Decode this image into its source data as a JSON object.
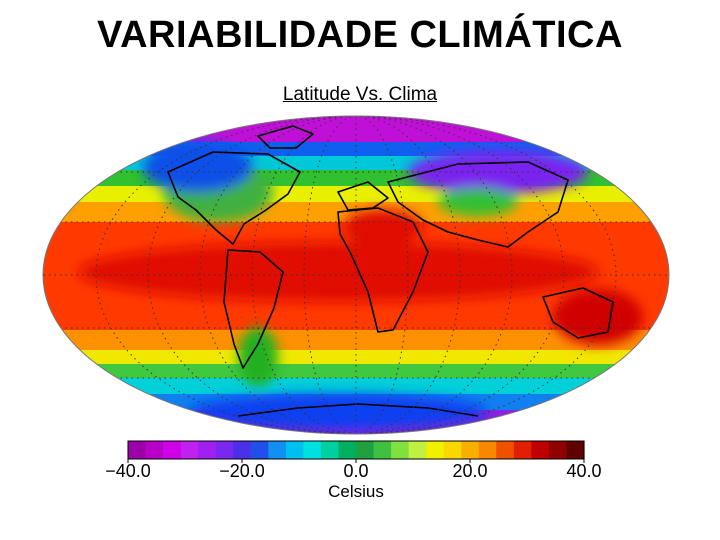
{
  "slide": {
    "title": "VARIABILIDADE CLIMÁTICA",
    "subtitle": "Latitude Vs. Clima"
  },
  "map": {
    "projection": "Mollweide",
    "variable": "surface temperature",
    "unit_label": "Celsius"
  },
  "colorbar": {
    "min": -40.0,
    "max": 40.0,
    "ticks": [
      "−40.0",
      "−20.0",
      "0.0",
      "20.0",
      "40.0"
    ],
    "label": "Celsius",
    "colors": [
      "#9c00a8",
      "#b800c8",
      "#d000e8",
      "#c020f0",
      "#a020f0",
      "#7a28f0",
      "#4a30e8",
      "#2050e8",
      "#1090f0",
      "#00c0f0",
      "#00e0e0",
      "#00d0a0",
      "#00b060",
      "#20a040",
      "#40c040",
      "#80e040",
      "#c0f040",
      "#f0f000",
      "#f8d800",
      "#f8b000",
      "#f88800",
      "#f05000",
      "#e02000",
      "#c00000",
      "#900000",
      "#600000"
    ]
  },
  "palette": {
    "deep_red": "#e00000",
    "red": "#ff2000",
    "orange": "#ff7800",
    "yellow_orange": "#ffb000",
    "yellow": "#f0f000",
    "green": "#30c030",
    "cyan": "#00e0e0",
    "blue": "#1060f0",
    "violet": "#a020f0",
    "magenta": "#d010e0"
  }
}
